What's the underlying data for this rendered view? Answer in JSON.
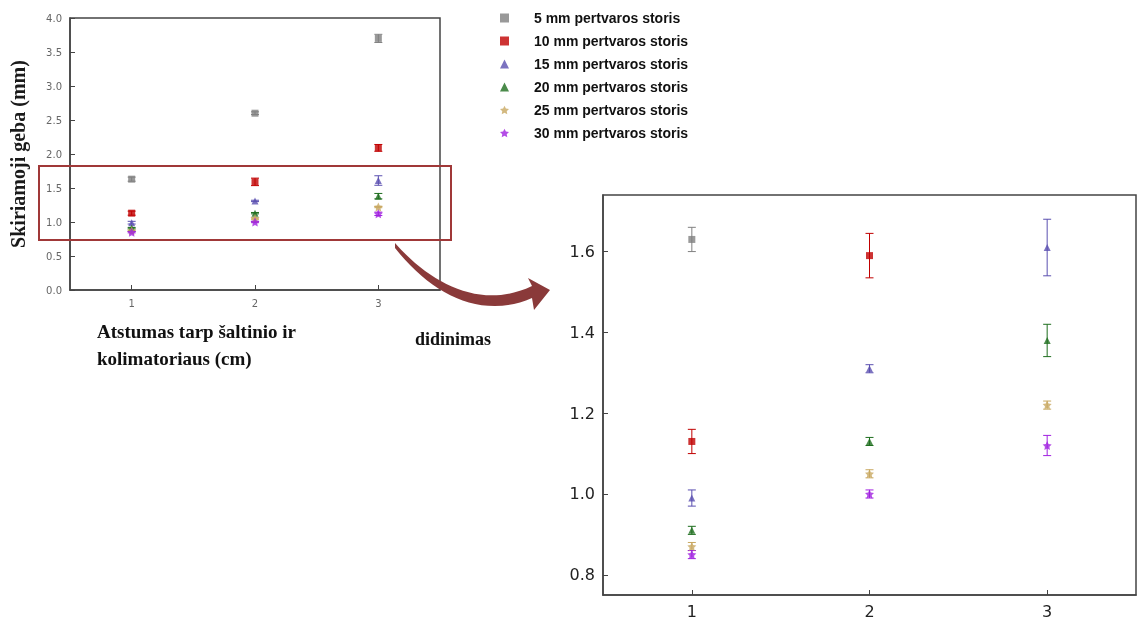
{
  "chart_data": [
    {
      "type": "scatter",
      "xlabel": "Atstumas tarp šaltinio ir kolimatoriaus (cm)",
      "ylabel": "Skiriamoji geba (mm)",
      "x": [
        1,
        2,
        3
      ],
      "xlim": [
        0.5,
        3.5
      ],
      "xticks": [
        1,
        2,
        3
      ],
      "ylim": [
        0,
        4
      ],
      "yticks": [
        {
          "value": 0,
          "label": "0.0"
        },
        0.5,
        {
          "value": 1,
          "label": "1.0"
        },
        1.5,
        {
          "value": 2,
          "label": "2.0"
        },
        2.5,
        {
          "value": 3,
          "label": "3.0"
        },
        3.5,
        {
          "value": 4,
          "label": "4.0"
        }
      ],
      "legend": "top right",
      "annotations": [
        "didinimas"
      ],
      "series": [
        {
          "name": "5 mm pertvaros storis",
          "color": "#808080",
          "marker": "square",
          "values": [
            1.63,
            2.6,
            3.7
          ],
          "errors": [
            0.03,
            0.02,
            0.06
          ]
        },
        {
          "name": "10 mm pertvaros storis",
          "color": "#c00000",
          "marker": "square",
          "values": [
            1.13,
            1.59,
            2.09
          ],
          "errors": [
            0.03,
            0.055,
            0.05
          ]
        },
        {
          "name": "15 mm pertvaros storis",
          "color": "#5a4fb0",
          "marker": "triangle",
          "values": [
            0.99,
            1.31,
            1.61
          ],
          "errors": [
            0.02,
            0.01,
            0.07
          ]
        },
        {
          "name": "20 mm pertvaros storis",
          "color": "#1e6e1e",
          "marker": "triangle",
          "values": [
            0.91,
            1.13,
            1.38
          ],
          "errors": [
            0.01,
            0.01,
            0.04
          ]
        },
        {
          "name": "25 mm pertvaros storis",
          "color": "#c8a860",
          "marker": "star",
          "values": [
            0.87,
            1.05,
            1.22
          ],
          "errors": [
            0.01,
            0.01,
            0.01
          ]
        },
        {
          "name": "30 mm pertvaros storis",
          "color": "#a020e0",
          "marker": "star",
          "values": [
            0.85,
            1.0,
            1.12
          ],
          "errors": [
            0.01,
            0.01,
            0.025
          ]
        }
      ]
    },
    {
      "type": "scatter",
      "x": [
        1,
        2,
        3
      ],
      "xlim": [
        0.5,
        3.5
      ],
      "xticks": [
        1,
        2,
        3
      ],
      "ylim": [
        0.75,
        1.74
      ],
      "yticks": [
        0.8,
        {
          "value": 1,
          "label": "1.0"
        },
        1.2,
        1.4,
        1.6
      ],
      "series": [
        {
          "color": "#808080",
          "marker": "square",
          "values": [
            1.63,
            null,
            null
          ],
          "errors": [
            0.03,
            null,
            null
          ]
        },
        {
          "color": "#c00000",
          "marker": "square",
          "values": [
            1.13,
            1.59,
            null
          ],
          "errors": [
            0.03,
            0.055,
            null
          ]
        },
        {
          "color": "#5a4fb0",
          "marker": "triangle",
          "values": [
            0.99,
            1.31,
            1.61
          ],
          "errors": [
            0.02,
            0.01,
            0.07
          ]
        },
        {
          "color": "#1e6e1e",
          "marker": "triangle",
          "values": [
            0.91,
            1.13,
            1.38
          ],
          "errors": [
            0.01,
            0.01,
            0.04
          ]
        },
        {
          "color": "#c8a860",
          "marker": "star",
          "values": [
            0.87,
            1.05,
            1.22
          ],
          "errors": [
            0.01,
            0.01,
            0.01
          ]
        },
        {
          "color": "#a020e0",
          "marker": "star",
          "values": [
            0.85,
            1.0,
            1.12
          ],
          "errors": [
            0.01,
            0.01,
            0.025
          ]
        }
      ]
    }
  ]
}
